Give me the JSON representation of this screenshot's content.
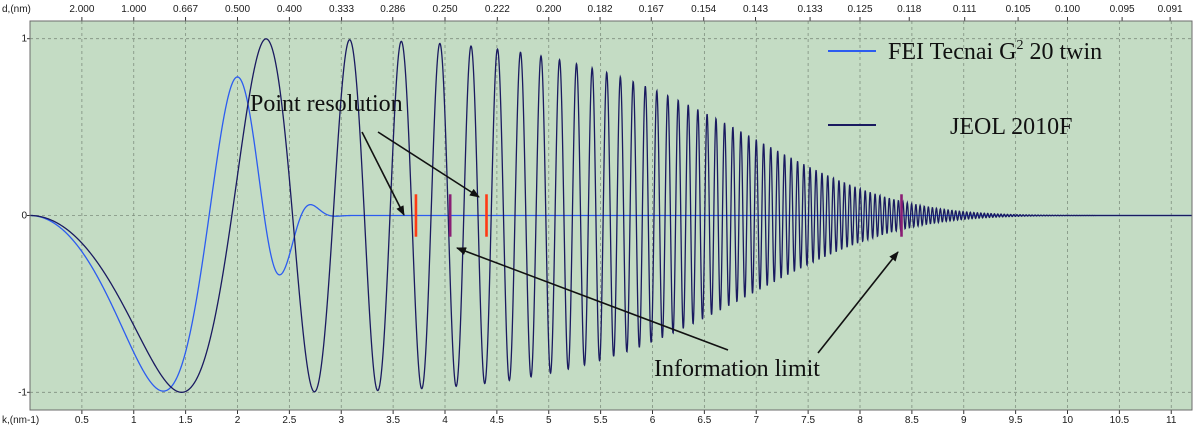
{
  "chart_data": {
    "type": "line",
    "top_axis": {
      "label": "d,(nm)",
      "tick_labels": [
        "2.000",
        "1.000",
        "0.667",
        "0.500",
        "0.400",
        "0.333",
        "0.286",
        "0.250",
        "0.222",
        "0.200",
        "0.182",
        "0.167",
        "0.154",
        "0.143",
        "0.133",
        "0.125",
        "0.118",
        "0.111",
        "0.105",
        "0.100",
        "0.095",
        "0.091"
      ]
    },
    "x_axis": {
      "label": "k,(nm-1)",
      "range": [
        0,
        11.2
      ],
      "ticks": [
        "0.5",
        "1",
        "1.5",
        "2",
        "2.5",
        "3",
        "3.5",
        "4",
        "4.5",
        "5",
        "5.5",
        "6",
        "6.5",
        "7",
        "7.5",
        "8",
        "8.5",
        "9",
        "9.5",
        "10",
        "10.5",
        "11"
      ]
    },
    "y_axis": {
      "range": [
        -1.1,
        1.1
      ],
      "ticks": [
        "1",
        "0",
        "-1"
      ]
    },
    "grid": true,
    "background_color": "#c4dcc4",
    "legend": {
      "placement": "top-right",
      "entries": [
        {
          "prefix": "FEI Tecnai G",
          "superscript": "2",
          "suffix": " 20 twin",
          "color": "#2c5cf0"
        },
        {
          "label": "JEOL 2010F",
          "color": "#1a1a60"
        }
      ]
    },
    "annotations": {
      "point_resolution": "Point resolution",
      "information_limit": "Information limit"
    },
    "series": [
      {
        "color": "#2c5cf0",
        "model": "damped_oscillation",
        "a": 0.255,
        "b": 0.0,
        "c": 0.027,
        "damping_k": 2.4,
        "damping_power": 8
      },
      {
        "color": "#1a1a60",
        "model": "damped_oscillation",
        "a": 0.195,
        "b": 0.0,
        "c": 0.0183,
        "damping_k": 7.2,
        "damping_power": 6
      }
    ],
    "markers": [
      {
        "k": 3.72,
        "color": "#ff3a14",
        "kind": "point resolution"
      },
      {
        "k": 4.4,
        "color": "#ff3a14",
        "kind": "point resolution"
      },
      {
        "k": 4.05,
        "color": "#8a1e74",
        "kind": "information limit"
      },
      {
        "k": 8.4,
        "color": "#8a1e74",
        "kind": "information limit"
      }
    ]
  }
}
